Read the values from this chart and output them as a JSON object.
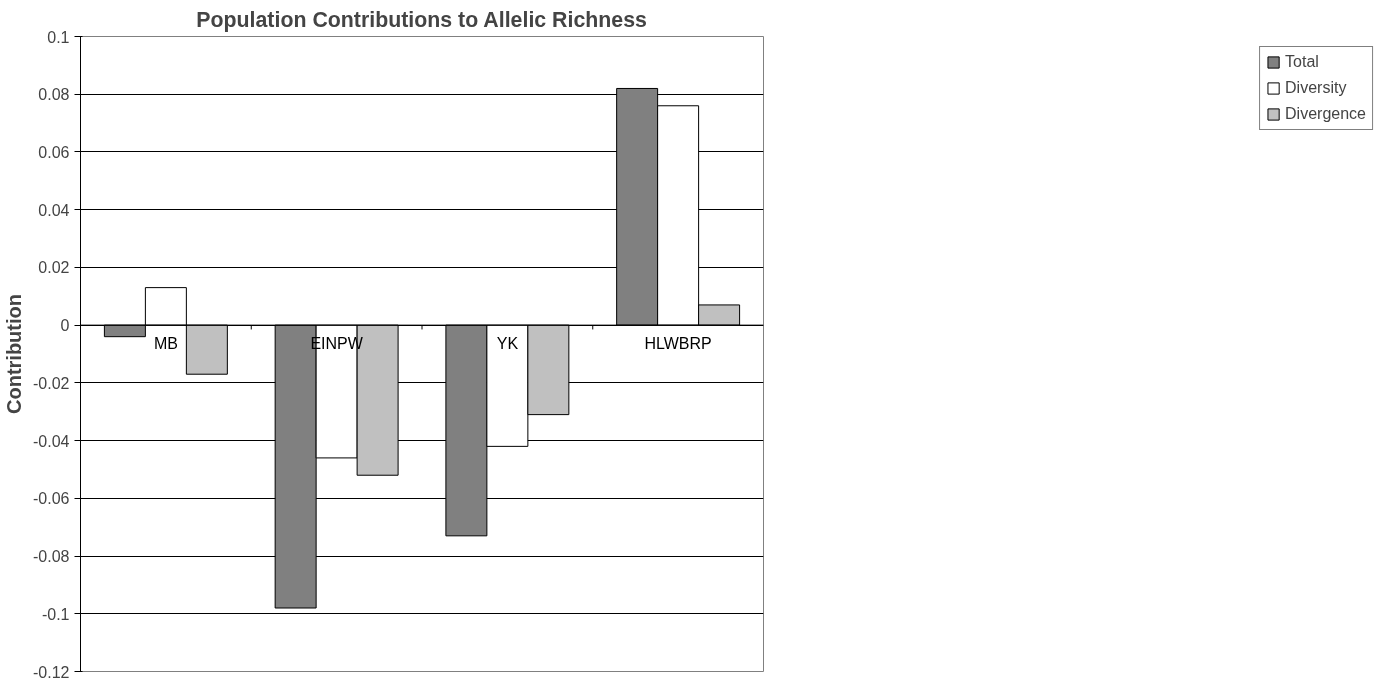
{
  "chart_data": {
    "type": "bar",
    "title": "Population Contributions to Allelic Richness",
    "ylabel": "Contribution",
    "categories": [
      "MB",
      "EINPW",
      "YK",
      "HLWBRP"
    ],
    "series": [
      {
        "name": "Total",
        "color": "#808080",
        "values": [
          -0.004,
          -0.098,
          -0.073,
          0.082
        ]
      },
      {
        "name": "Diversity",
        "color": "#ffffff",
        "values": [
          0.013,
          -0.046,
          -0.042,
          0.076
        ]
      },
      {
        "name": "Divergence",
        "color": "#c0c0c0",
        "values": [
          -0.017,
          -0.052,
          -0.031,
          0.007
        ]
      }
    ],
    "ylim": [
      -0.12,
      0.1
    ],
    "yticks": [
      {
        "value": -0.12,
        "label": "-0.12"
      },
      {
        "value": -0.1,
        "label": "-0.1"
      },
      {
        "value": -0.08,
        "label": "-0.08"
      },
      {
        "value": -0.06,
        "label": "-0.06"
      },
      {
        "value": -0.04,
        "label": "-0.04"
      },
      {
        "value": -0.02,
        "label": "-0.02"
      },
      0,
      {
        "value": 0.02,
        "label": "0.02"
      },
      {
        "value": 0.04,
        "label": "0.04"
      },
      {
        "value": 0.06,
        "label": "0.06"
      },
      {
        "value": 0.08,
        "label": "0.08"
      },
      {
        "value": 0.1,
        "label": "0.1"
      }
    ],
    "grid": "y",
    "legend": "right"
  }
}
